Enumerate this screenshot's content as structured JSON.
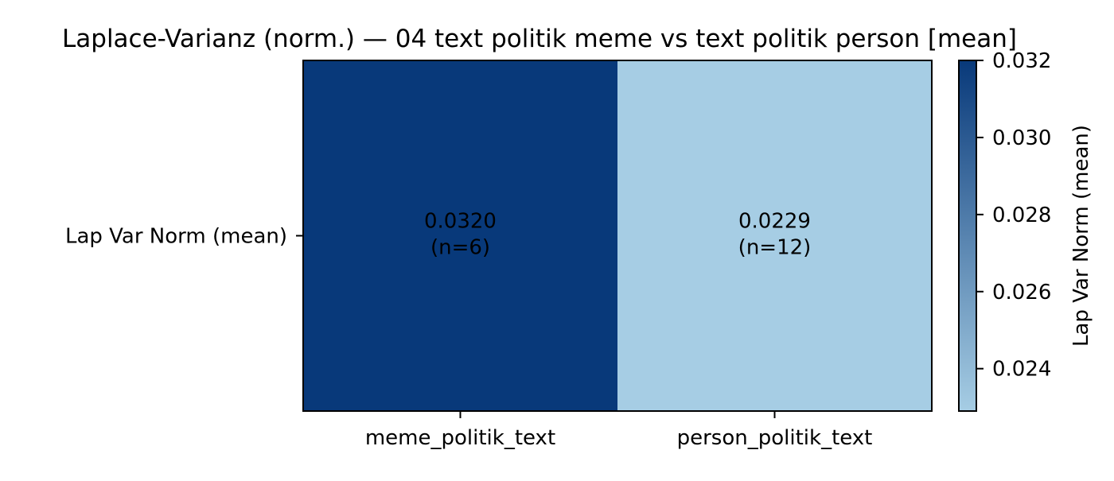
{
  "chart_data": {
    "type": "heatmap",
    "title": "Laplace-Varianz (norm.) — 04 text politik meme vs text politik person [mean]",
    "xlabel": "",
    "ylabel": "",
    "x_categories": [
      "meme_politik_text",
      "person_politik_text"
    ],
    "y_categories": [
      "Lap Var Norm (mean)"
    ],
    "values": [
      [
        0.032,
        0.0229
      ]
    ],
    "cell_labels": [
      [
        "0.0320\n(n=6)",
        "0.0229\n(n=12)"
      ]
    ],
    "colorbar": {
      "label": "Lap Var Norm (mean)",
      "range": [
        0.0229,
        0.032
      ],
      "ticks": [
        "0.024",
        "0.026",
        "0.028",
        "0.030",
        "0.032"
      ],
      "tick_values": [
        0.024,
        0.026,
        0.028,
        0.03,
        0.032
      ],
      "colormap": "Blues",
      "color_low": "#a6cde4",
      "color_high": "#08397a"
    },
    "grid": false
  }
}
